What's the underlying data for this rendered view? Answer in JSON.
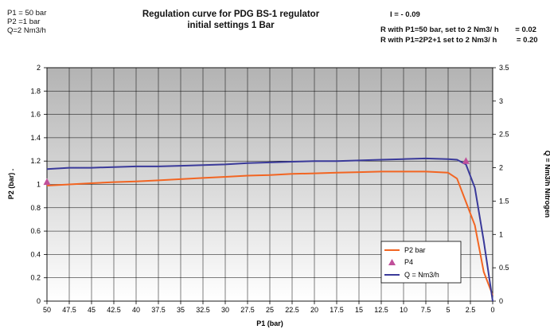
{
  "header": {
    "params": [
      "P1 = 50 bar",
      "P2 =1  bar",
      "Q=2 Nm3/h"
    ],
    "title_line1": "Regulation curve  for PDG BS-1 regulator",
    "title_line2": "initial settings 1 Bar",
    "i_value": "I = - 0.09",
    "r_line1_label": "R with P1=50 bar, set to 2 Nm3/ h",
    "r_line1_value": "= 0.02",
    "r_line2_label": "R with P1=2P2+1 set to 2 Nm3/ h",
    "r_line2_value": "= 0.20"
  },
  "colors": {
    "p2": "#f26522",
    "p4": "#c0509a",
    "q": "#3a3a9a",
    "plot_bg_top": "#b3b3b3",
    "plot_bg_bottom": "#ffffff"
  },
  "chart_data": {
    "type": "line",
    "title": "Regulation curve  for PDG BS-1 regulator",
    "subtitle": "initial settings 1 Bar",
    "xlabel": "P1 (bar)",
    "ylabel": "P2 (bar) .",
    "y2label": "Q = Nm3/h Nitrogen",
    "xlim": [
      50,
      0
    ],
    "ylim": [
      0,
      2
    ],
    "y2lim": [
      0,
      3.5
    ],
    "x_ticks": [
      "50",
      "47.5",
      "45",
      "42.5",
      "40",
      "37.5",
      "35",
      "32.5",
      "30",
      "27.5",
      "25",
      "22.5",
      "20",
      "17.5",
      "15",
      "12.5",
      "10",
      "7.5",
      "5",
      "2.5",
      "0"
    ],
    "y_ticks": [
      "0",
      "0.2",
      "0.4",
      "0.6",
      "0.8",
      "1",
      "1.2",
      "1.4",
      "1.6",
      "1.8",
      "2"
    ],
    "y2_ticks": [
      "0",
      "0.5",
      "1",
      "1.5",
      "2",
      "2.5",
      "3",
      "3.5"
    ],
    "grid": true,
    "legend_position": "bottom-right",
    "series": [
      {
        "name": "P2  bar",
        "axis": "left",
        "points": [
          [
            50,
            0.99
          ],
          [
            47.5,
            1.0
          ],
          [
            45,
            1.01
          ],
          [
            42.5,
            1.02
          ],
          [
            40,
            1.025
          ],
          [
            37.5,
            1.035
          ],
          [
            35,
            1.045
          ],
          [
            32.5,
            1.055
          ],
          [
            30,
            1.065
          ],
          [
            27.5,
            1.075
          ],
          [
            25,
            1.08
          ],
          [
            22.5,
            1.09
          ],
          [
            20,
            1.095
          ],
          [
            17.5,
            1.1
          ],
          [
            15,
            1.105
          ],
          [
            12.5,
            1.11
          ],
          [
            10,
            1.11
          ],
          [
            7.5,
            1.11
          ],
          [
            5,
            1.1
          ],
          [
            4,
            1.05
          ],
          [
            3,
            0.85
          ],
          [
            2,
            0.65
          ],
          [
            1,
            0.25
          ],
          [
            0,
            0.05
          ]
        ]
      },
      {
        "name": "P4",
        "axis": "left",
        "marker": "triangle",
        "points": [
          [
            50,
            1.02
          ],
          [
            3,
            1.2
          ]
        ]
      },
      {
        "name": "Q = Nm3/h",
        "axis": "right",
        "points": [
          [
            50,
            1.98
          ],
          [
            47.5,
            2.0
          ],
          [
            45,
            2.0
          ],
          [
            42.5,
            2.01
          ],
          [
            40,
            2.02
          ],
          [
            37.5,
            2.02
          ],
          [
            35,
            2.03
          ],
          [
            32.5,
            2.04
          ],
          [
            30,
            2.05
          ],
          [
            27.5,
            2.07
          ],
          [
            25,
            2.08
          ],
          [
            22.5,
            2.09
          ],
          [
            20,
            2.1
          ],
          [
            17.5,
            2.1
          ],
          [
            15,
            2.11
          ],
          [
            12.5,
            2.12
          ],
          [
            10,
            2.13
          ],
          [
            7.5,
            2.14
          ],
          [
            5,
            2.13
          ],
          [
            4,
            2.12
          ],
          [
            3,
            2.05
          ],
          [
            2,
            1.7
          ],
          [
            1,
            0.9
          ],
          [
            0,
            0.0
          ]
        ]
      }
    ]
  }
}
